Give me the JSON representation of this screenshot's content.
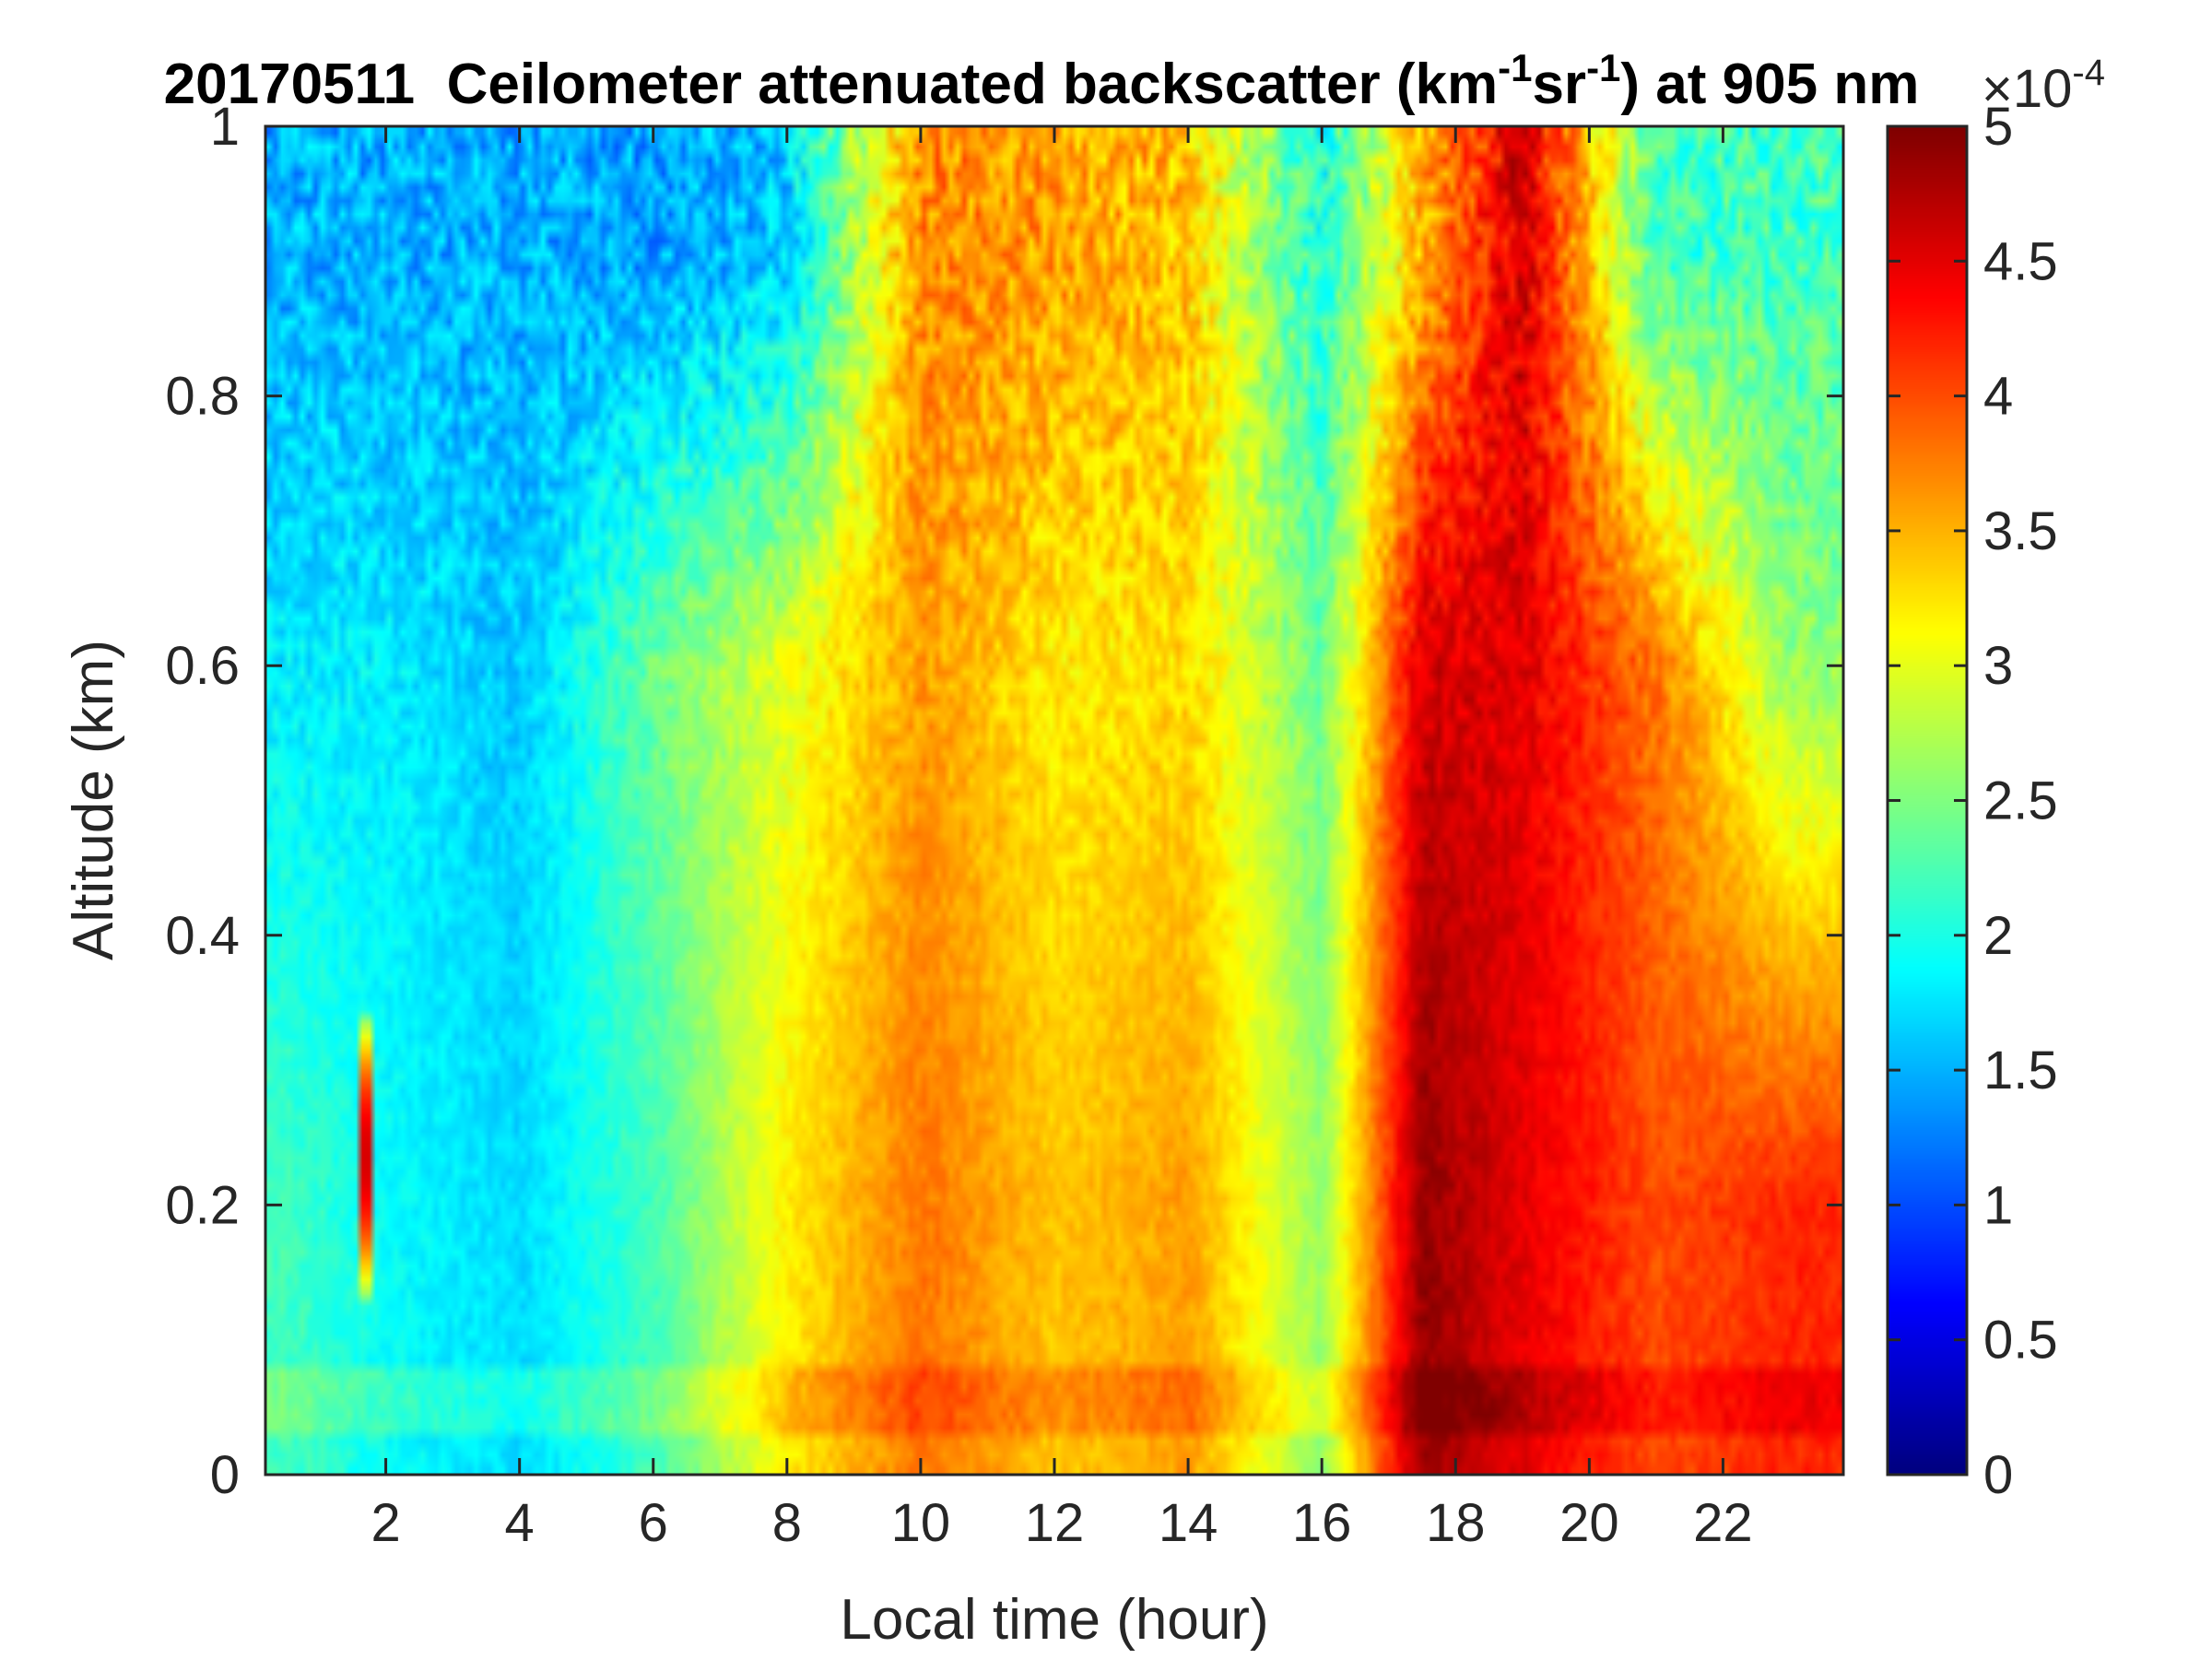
{
  "chart_data": {
    "type": "heatmap",
    "title": {
      "date": "20170511",
      "main": "Ceilometer attenuated backscatter (km",
      "sup1": "-1",
      "mid": "sr",
      "sup2": "-1",
      "tail": ") at 905 nm"
    },
    "xlabel": "Local time (hour)",
    "ylabel": "Altitude (km)",
    "xlim": [
      0.2,
      23.8
    ],
    "ylim": [
      0,
      1
    ],
    "xticks": [
      2,
      4,
      6,
      8,
      10,
      12,
      14,
      16,
      18,
      20,
      22
    ],
    "yticks": [
      0,
      0.2,
      0.4,
      0.6,
      0.8,
      1
    ],
    "colorbar": {
      "colormap": "jet",
      "range": [
        0,
        5
      ],
      "ticks": [
        0,
        0.5,
        1,
        1.5,
        2,
        2.5,
        3,
        3.5,
        4,
        4.5,
        5
      ],
      "exponent_base": "×10",
      "exponent": "-4"
    },
    "grid": false,
    "legend": "none",
    "approximate_profile_by_hour": {
      "hours": [
        0.5,
        2,
        4,
        6,
        8,
        10,
        12,
        14,
        16,
        17.5,
        19,
        21,
        23
      ],
      "near_surface_0.2km": [
        2.2,
        1.9,
        1.7,
        2.2,
        3.2,
        3.8,
        3.4,
        3.6,
        2.6,
        4.9,
        4.5,
        4.0,
        4.2
      ],
      "mid_0.6km": [
        1.8,
        1.8,
        1.6,
        2.4,
        3.0,
        3.6,
        3.2,
        3.3,
        2.4,
        4.6,
        4.5,
        3.8,
        2.6
      ],
      "upper_0.9km": [
        1.5,
        1.5,
        1.5,
        1.4,
        1.6,
        3.7,
        3.6,
        3.4,
        2.0,
        3.5,
        4.6,
        2.2,
        2.2
      ]
    },
    "features": [
      {
        "type": "aerosol plume",
        "hour": 1.7,
        "altitude_range_km": [
          0.12,
          0.35
        ],
        "value": 5.0
      },
      {
        "type": "surface layer",
        "altitude_range_km": [
          0.03,
          0.08
        ]
      }
    ]
  }
}
